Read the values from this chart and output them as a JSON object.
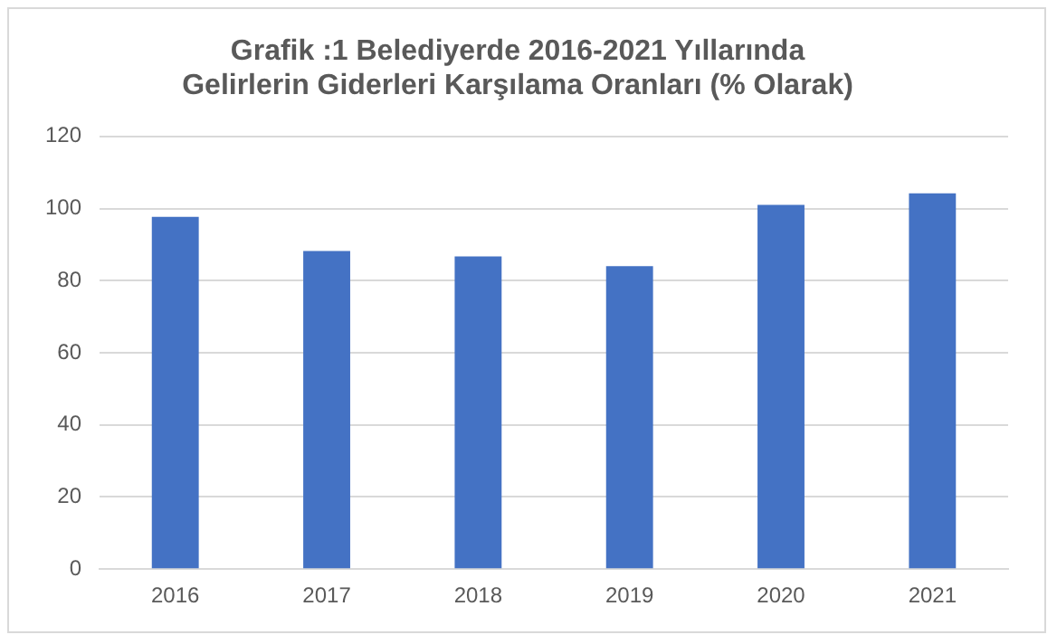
{
  "chart_data": {
    "type": "bar",
    "title": "Grafik :1 Belediyerde 2016-2021 Yıllarında Gelirlerin Giderleri Karşılama Oranları (% Olarak)",
    "categories": [
      "2016",
      "2017",
      "2018",
      "2019",
      "2020",
      "2021"
    ],
    "values": [
      97.7,
      88.2,
      86.7,
      84,
      101,
      104.2
    ],
    "color": "#4472c4",
    "ylim": [
      0,
      120
    ],
    "yticks": [
      0,
      20,
      40,
      60,
      80,
      100,
      120
    ],
    "grid": "y"
  }
}
